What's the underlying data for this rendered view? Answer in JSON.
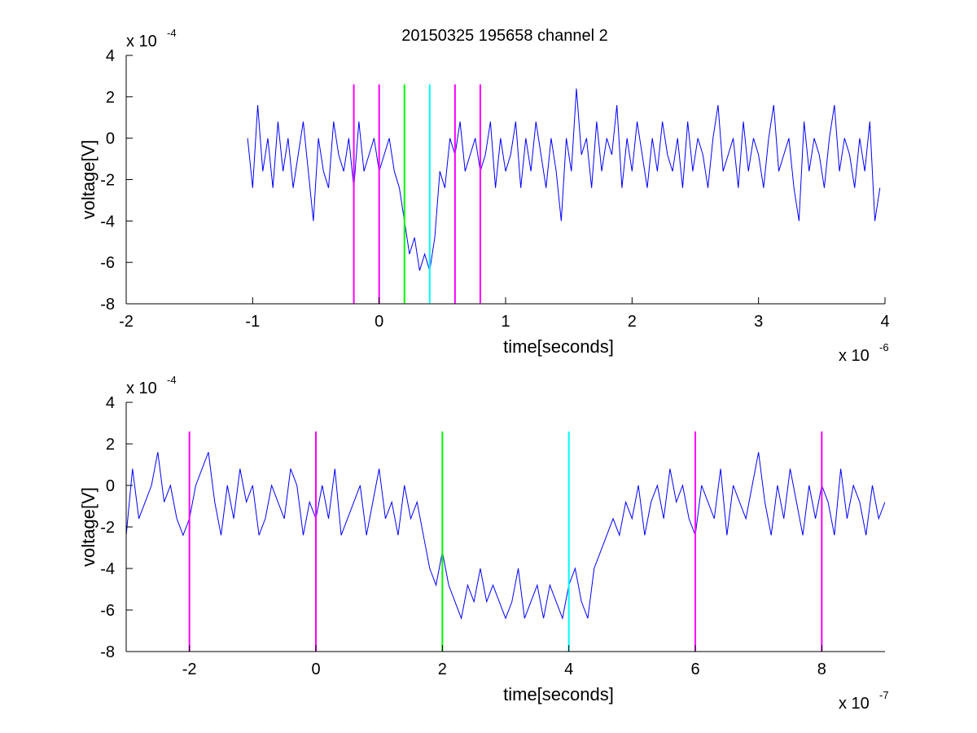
{
  "figure": {
    "title": "20150325 195658 channel 2"
  },
  "chart_data": [
    {
      "type": "line",
      "title": "20150325 195658 channel 2",
      "xlabel": "time[seconds]",
      "ylabel": "voltage[V]",
      "x_exponent_label": "x 10",
      "x_exponent": "-6",
      "y_exponent_label": "x 10",
      "y_exponent": "-4",
      "xlim": [
        -2,
        4
      ],
      "ylim": [
        -8,
        4
      ],
      "xticks": [
        -2,
        -1,
        0,
        1,
        2,
        3,
        4
      ],
      "xtick_labels": [
        "-2",
        "-1",
        "0",
        "1",
        "2",
        "3",
        "4"
      ],
      "yticks": [
        -8,
        -6,
        -4,
        -2,
        0,
        2,
        4
      ],
      "ytick_labels": [
        "-8",
        "-6",
        "-4",
        "-2",
        "0",
        "2",
        "4"
      ],
      "grid": false,
      "series": [
        {
          "color": "#0000ff",
          "x": [
            -1.04,
            -1.0,
            -0.96,
            -0.92,
            -0.88,
            -0.84,
            -0.8,
            -0.76,
            -0.72,
            -0.68,
            -0.64,
            -0.6,
            -0.56,
            -0.52,
            -0.48,
            -0.44,
            -0.4,
            -0.36,
            -0.32,
            -0.28,
            -0.24,
            -0.2,
            -0.16,
            -0.12,
            -0.08,
            -0.04,
            0.0,
            0.04,
            0.08,
            0.12,
            0.16,
            0.2,
            0.24,
            0.28,
            0.32,
            0.36,
            0.4,
            0.44,
            0.48,
            0.52,
            0.56,
            0.6,
            0.64,
            0.68,
            0.72,
            0.76,
            0.8,
            0.84,
            0.88,
            0.92,
            0.96,
            1.0,
            1.04,
            1.08,
            1.12,
            1.16,
            1.2,
            1.24,
            1.28,
            1.32,
            1.36,
            1.4,
            1.44,
            1.48,
            1.52,
            1.56,
            1.6,
            1.64,
            1.68,
            1.72,
            1.76,
            1.8,
            1.84,
            1.88,
            1.92,
            1.96,
            2.0,
            2.04,
            2.08,
            2.12,
            2.16,
            2.2,
            2.24,
            2.28,
            2.32,
            2.36,
            2.4,
            2.44,
            2.48,
            2.52,
            2.56,
            2.6,
            2.64,
            2.68,
            2.72,
            2.76,
            2.8,
            2.84,
            2.88,
            2.92,
            2.96,
            3.0,
            3.04,
            3.08,
            3.12,
            3.16,
            3.2,
            3.24,
            3.28,
            3.32,
            3.36,
            3.4,
            3.44,
            3.48,
            3.52,
            3.56,
            3.6,
            3.64,
            3.68,
            3.72,
            3.76,
            3.8,
            3.84,
            3.88,
            3.92,
            3.96
          ],
          "y": [
            0,
            -2.4,
            1.6,
            -1.6,
            0,
            -2.4,
            0.8,
            -1.6,
            0,
            -2.4,
            -0.8,
            0.8,
            -1.6,
            -4,
            0,
            -1.6,
            -2.4,
            0.8,
            -0.8,
            -1.6,
            0,
            -2.4,
            0.8,
            -1.6,
            -0.8,
            0,
            -1.6,
            -0.8,
            0,
            -1.6,
            -2.4,
            -4,
            -5.6,
            -4.8,
            -6.4,
            -5.6,
            -6.4,
            -4.8,
            -1.6,
            -2.4,
            0,
            -0.8,
            0.8,
            -1.6,
            -0.8,
            0,
            -1.6,
            -0.8,
            0.8,
            -2.4,
            0,
            -1.6,
            -0.8,
            0.8,
            -2.4,
            0,
            -1.6,
            0.8,
            -0.8,
            -2.4,
            0,
            -1.6,
            -4,
            0,
            -1.6,
            2.4,
            -0.8,
            0,
            -2.4,
            0.8,
            -1.6,
            0,
            -0.8,
            1.6,
            -2.4,
            0,
            -1.6,
            0.8,
            -0.8,
            -2.4,
            0,
            -1.6,
            0.8,
            -0.8,
            -1.6,
            0,
            -2.4,
            0.8,
            -1.6,
            0,
            -0.8,
            -2.4,
            0,
            1.6,
            -1.6,
            -0.8,
            0,
            -2.4,
            0.8,
            -1.6,
            0,
            -0.8,
            -2.4,
            0,
            1.6,
            -1.6,
            -0.8,
            0,
            -2.4,
            -4,
            0.8,
            -1.6,
            0,
            -0.8,
            -2.4,
            0,
            1.6,
            -1.6,
            0,
            -0.8,
            -2.4,
            0,
            -1.6,
            0.8,
            -4,
            -2.4
          ]
        }
      ],
      "vlines": [
        {
          "x": -0.2,
          "color": "#ff00ff"
        },
        {
          "x": 0.0,
          "color": "#ff00ff"
        },
        {
          "x": 0.2,
          "color": "#00ff00"
        },
        {
          "x": 0.4,
          "color": "#00ffff"
        },
        {
          "x": 0.6,
          "color": "#ff00ff"
        },
        {
          "x": 0.8,
          "color": "#ff00ff"
        }
      ],
      "vline_top": 2.6
    },
    {
      "type": "line",
      "title": "",
      "xlabel": "time[seconds]",
      "ylabel": "voltage[V]",
      "x_exponent_label": "x 10",
      "x_exponent": "-7",
      "y_exponent_label": "x 10",
      "y_exponent": "-4",
      "xlim": [
        -3,
        9
      ],
      "ylim": [
        -8,
        4
      ],
      "xticks": [
        -2,
        0,
        2,
        4,
        6,
        8
      ],
      "xtick_labels": [
        "-2",
        "0",
        "2",
        "4",
        "6",
        "8"
      ],
      "yticks": [
        -8,
        -6,
        -4,
        -2,
        0,
        2,
        4
      ],
      "ytick_labels": [
        "-8",
        "-6",
        "-4",
        "-2",
        "0",
        "2",
        "4"
      ],
      "grid": false,
      "series": [
        {
          "color": "#0000ff",
          "x": [
            -3.0,
            -2.9,
            -2.8,
            -2.7,
            -2.6,
            -2.5,
            -2.4,
            -2.3,
            -2.2,
            -2.1,
            -2.0,
            -1.9,
            -1.8,
            -1.7,
            -1.6,
            -1.5,
            -1.4,
            -1.3,
            -1.2,
            -1.1,
            -1.0,
            -0.9,
            -0.8,
            -0.7,
            -0.6,
            -0.5,
            -0.4,
            -0.3,
            -0.2,
            -0.1,
            0.0,
            0.1,
            0.2,
            0.3,
            0.4,
            0.5,
            0.6,
            0.7,
            0.8,
            0.9,
            1.0,
            1.1,
            1.2,
            1.3,
            1.4,
            1.5,
            1.6,
            1.7,
            1.8,
            1.9,
            2.0,
            2.1,
            2.2,
            2.3,
            2.4,
            2.5,
            2.6,
            2.7,
            2.8,
            2.9,
            3.0,
            3.1,
            3.2,
            3.3,
            3.4,
            3.5,
            3.6,
            3.7,
            3.8,
            3.9,
            4.0,
            4.1,
            4.2,
            4.3,
            4.4,
            4.5,
            4.6,
            4.7,
            4.8,
            4.9,
            5.0,
            5.1,
            5.2,
            5.3,
            5.4,
            5.5,
            5.6,
            5.7,
            5.8,
            5.9,
            6.0,
            6.1,
            6.2,
            6.3,
            6.4,
            6.5,
            6.6,
            6.7,
            6.8,
            6.9,
            7.0,
            7.1,
            7.2,
            7.3,
            7.4,
            7.5,
            7.6,
            7.7,
            7.8,
            7.9,
            8.0,
            8.1,
            8.2,
            8.3,
            8.4,
            8.5,
            8.6,
            8.7,
            8.8,
            8.9,
            9.0
          ],
          "y": [
            -2.4,
            0.8,
            -1.6,
            -0.8,
            0,
            1.6,
            -0.8,
            0,
            -1.6,
            -2.4,
            -1.6,
            0,
            0.8,
            1.6,
            -0.8,
            -2.4,
            0,
            -1.6,
            0.8,
            -0.8,
            0,
            -2.4,
            -1.6,
            0,
            -0.8,
            -1.6,
            0.8,
            0,
            -2.4,
            -0.8,
            -1.6,
            0,
            -1.6,
            0.8,
            -2.4,
            -1.6,
            -0.8,
            0,
            -2.4,
            -0.8,
            0.8,
            -1.6,
            -0.8,
            -2.4,
            0,
            -1.6,
            -0.8,
            -2.4,
            -4.0,
            -4.8,
            -3.2,
            -4.8,
            -5.6,
            -6.4,
            -4.8,
            -5.6,
            -4.0,
            -5.6,
            -4.8,
            -5.6,
            -6.4,
            -5.6,
            -4.0,
            -6.4,
            -5.6,
            -4.8,
            -6.4,
            -4.8,
            -5.6,
            -6.4,
            -4.8,
            -4.0,
            -5.6,
            -6.4,
            -4.0,
            -3.2,
            -2.4,
            -1.6,
            -2.4,
            -0.8,
            -1.6,
            0,
            -2.4,
            -0.8,
            0,
            -1.6,
            0.8,
            -0.8,
            0,
            -1.6,
            -2.4,
            0,
            -0.8,
            -1.6,
            0.8,
            -2.4,
            0,
            -0.8,
            -1.6,
            0,
            1.6,
            -0.8,
            -2.4,
            0,
            -1.6,
            0.8,
            -0.8,
            -2.4,
            0,
            -1.6,
            0,
            -0.8,
            -2.4,
            0.8,
            -1.6,
            0,
            -0.8,
            -2.4,
            0,
            -1.6,
            -0.8
          ]
        }
      ],
      "vlines": [
        {
          "x": -2,
          "color": "#ff00ff"
        },
        {
          "x": 0,
          "color": "#ff00ff"
        },
        {
          "x": 2,
          "color": "#00ff00"
        },
        {
          "x": 4,
          "color": "#00ffff"
        },
        {
          "x": 6,
          "color": "#ff00ff"
        },
        {
          "x": 8,
          "color": "#ff00ff"
        }
      ],
      "vline_top": 2.6
    }
  ]
}
